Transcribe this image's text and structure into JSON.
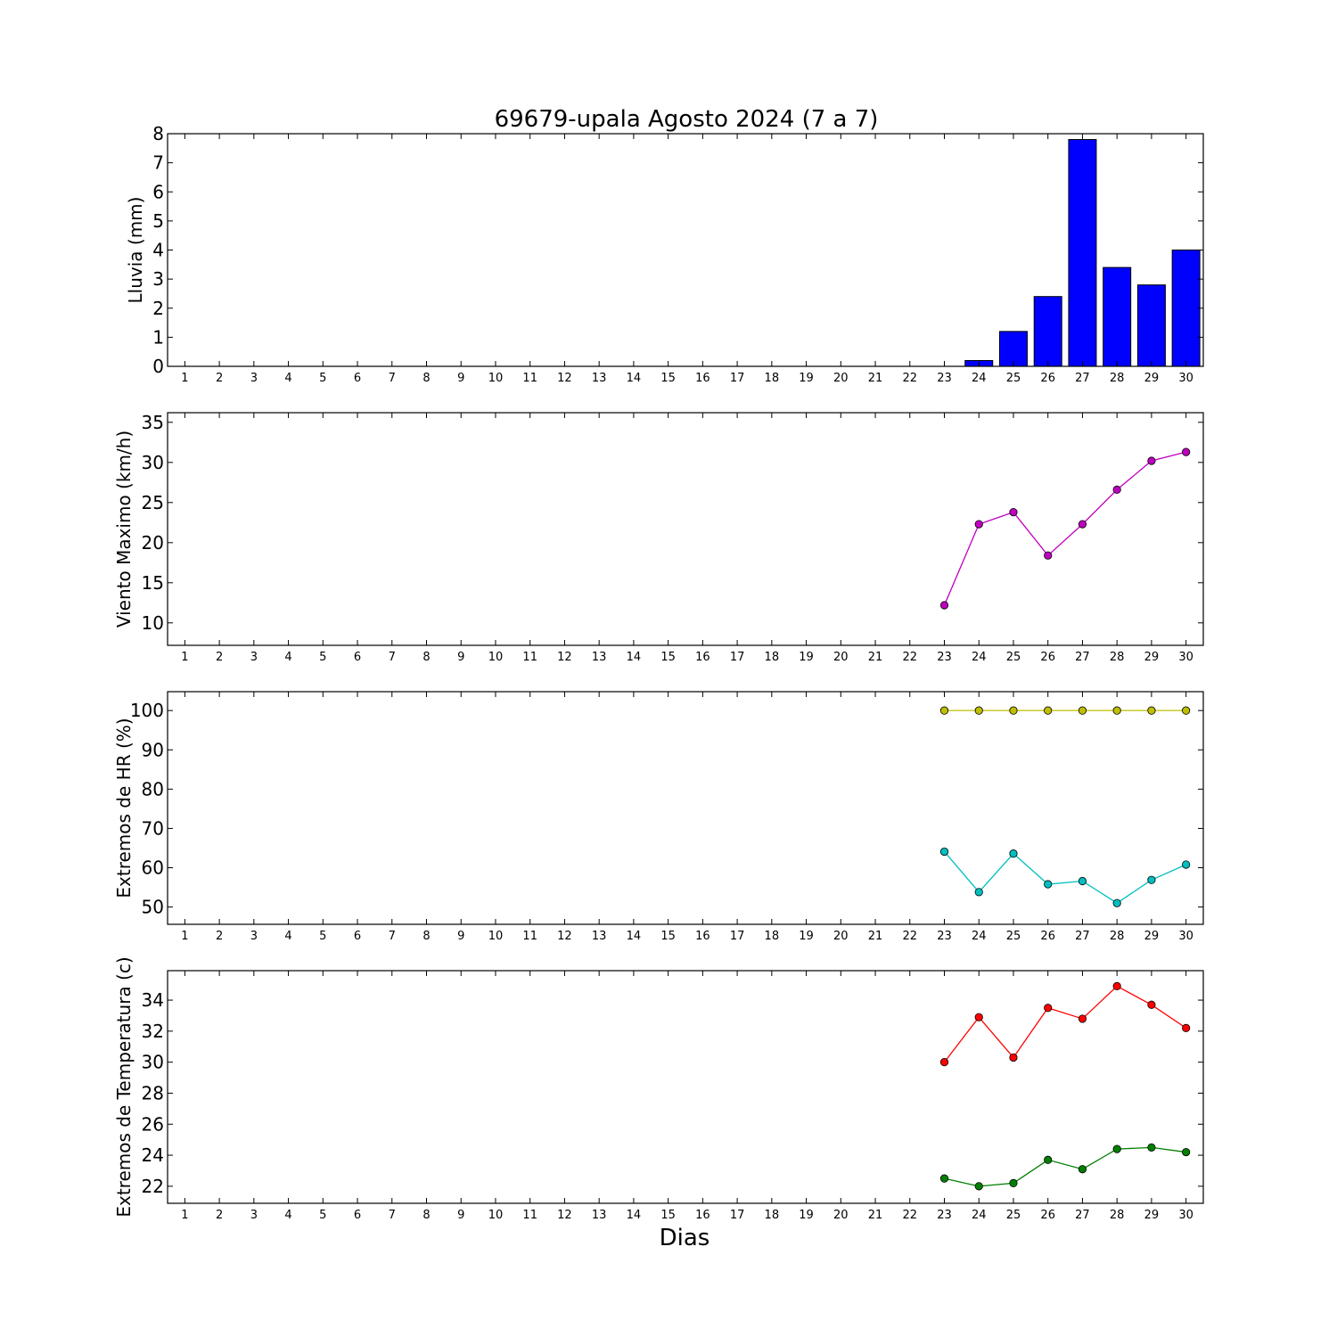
{
  "title": "69679-upala Agosto 2024  (7 a 7)",
  "xlabel": "Dias",
  "chart_data": [
    {
      "type": "bar",
      "ylabel": "Lluvia (mm)",
      "x": [
        1,
        2,
        3,
        4,
        5,
        6,
        7,
        8,
        9,
        10,
        11,
        12,
        13,
        14,
        15,
        16,
        17,
        18,
        19,
        20,
        21,
        22,
        23,
        24,
        25,
        26,
        27,
        28,
        29,
        30
      ],
      "xlim": [
        0.5,
        30.5
      ],
      "ylim": [
        0,
        8
      ],
      "yticks": [
        0,
        1,
        2,
        3,
        4,
        5,
        6,
        7,
        8
      ],
      "series": [
        {
          "color": "#0000ff",
          "values": [
            0,
            0,
            0,
            0,
            0,
            0,
            0,
            0,
            0,
            0,
            0,
            0,
            0,
            0,
            0,
            0,
            0,
            0,
            0,
            0,
            0,
            0,
            0,
            0.2,
            1.2,
            2.4,
            7.8,
            3.4,
            2.8,
            4.0
          ]
        }
      ]
    },
    {
      "type": "line",
      "ylabel": "Viento Maximo (km/h)",
      "x": [
        1,
        2,
        3,
        4,
        5,
        6,
        7,
        8,
        9,
        10,
        11,
        12,
        13,
        14,
        15,
        16,
        17,
        18,
        19,
        20,
        21,
        22,
        23,
        24,
        25,
        26,
        27,
        28,
        29,
        30
      ],
      "xlim": [
        0.5,
        30.5
      ],
      "ylim": [
        7.2,
        36.2
      ],
      "yticks": [
        10,
        15,
        20,
        25,
        30,
        35
      ],
      "series": [
        {
          "color": "#bf00bf",
          "x": [
            23,
            24,
            25,
            26,
            27,
            28,
            29,
            30
          ],
          "values": [
            12.2,
            22.3,
            23.8,
            18.4,
            22.3,
            26.6,
            30.2,
            31.3
          ]
        }
      ]
    },
    {
      "type": "line",
      "ylabel": "Extremos de HR (%)",
      "x": [
        1,
        2,
        3,
        4,
        5,
        6,
        7,
        8,
        9,
        10,
        11,
        12,
        13,
        14,
        15,
        16,
        17,
        18,
        19,
        20,
        21,
        22,
        23,
        24,
        25,
        26,
        27,
        28,
        29,
        30
      ],
      "xlim": [
        0.5,
        30.5
      ],
      "ylim": [
        45.6,
        104.8
      ],
      "yticks": [
        50,
        60,
        70,
        80,
        90,
        100
      ],
      "series": [
        {
          "color": "#bfbf00",
          "x": [
            23,
            24,
            25,
            26,
            27,
            28,
            29,
            30
          ],
          "values": [
            100,
            100,
            100,
            100,
            100,
            100,
            100,
            100
          ]
        },
        {
          "color": "#00bfbf",
          "x": [
            23,
            24,
            25,
            26,
            27,
            28,
            29,
            30
          ],
          "values": [
            64.1,
            53.8,
            63.6,
            55.8,
            56.6,
            51.0,
            56.9,
            60.8
          ]
        }
      ]
    },
    {
      "type": "line",
      "ylabel": "Extremos de Temperatura (c)",
      "x": [
        1,
        2,
        3,
        4,
        5,
        6,
        7,
        8,
        9,
        10,
        11,
        12,
        13,
        14,
        15,
        16,
        17,
        18,
        19,
        20,
        21,
        22,
        23,
        24,
        25,
        26,
        27,
        28,
        29,
        30
      ],
      "xlim": [
        0.5,
        30.5
      ],
      "ylim": [
        20.9,
        35.9
      ],
      "yticks": [
        22,
        24,
        26,
        28,
        30,
        32,
        34
      ],
      "series": [
        {
          "color": "#ff0000",
          "x": [
            23,
            24,
            25,
            26,
            27,
            28,
            29,
            30
          ],
          "values": [
            30.0,
            32.9,
            30.3,
            33.5,
            32.8,
            34.9,
            33.7,
            32.2
          ]
        },
        {
          "color": "#007f00",
          "x": [
            23,
            24,
            25,
            26,
            27,
            28,
            29,
            30
          ],
          "values": [
            22.5,
            22.0,
            22.2,
            23.7,
            23.1,
            24.4,
            24.5,
            24.2
          ]
        }
      ]
    }
  ]
}
